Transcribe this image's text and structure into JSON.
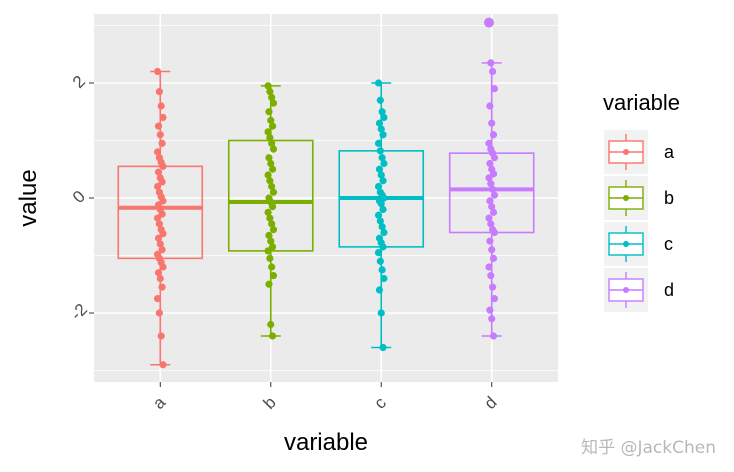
{
  "chart_data": {
    "type": "box",
    "title": "",
    "xlabel": "variable",
    "ylabel": "value",
    "categories": [
      "a",
      "b",
      "c",
      "d"
    ],
    "ylim": [
      -3.2,
      3.2
    ],
    "yticks": [
      -2,
      0,
      2
    ],
    "ytick_labels": [
      "-2",
      "0",
      "2"
    ],
    "grid": true,
    "legend": {
      "title": "variable",
      "position": "right",
      "entries": [
        "a",
        "b",
        "c",
        "d"
      ]
    },
    "colors": {
      "a": "#F8766D",
      "b": "#7CAE00",
      "c": "#00BFC4",
      "d": "#C77CFF"
    },
    "panel_background": "#EBEBEB",
    "series": [
      {
        "name": "a",
        "min": -2.9,
        "q1": -1.05,
        "median": -0.17,
        "q3": 0.55,
        "max": 2.2,
        "points": [
          2.2,
          1.85,
          1.6,
          1.4,
          1.25,
          1.1,
          0.95,
          0.8,
          0.7,
          0.62,
          0.55,
          0.45,
          0.35,
          0.28,
          0.2,
          0.1,
          0.02,
          -0.05,
          -0.12,
          -0.2,
          -0.28,
          -0.35,
          -0.45,
          -0.55,
          -0.62,
          -0.7,
          -0.8,
          -0.9,
          -0.98,
          -1.05,
          -1.12,
          -1.2,
          -1.3,
          -1.4,
          -1.55,
          -1.75,
          -2.0,
          -2.4,
          -2.9
        ]
      },
      {
        "name": "b",
        "min": -2.4,
        "q1": -0.92,
        "median": -0.07,
        "q3": 1.0,
        "max": 1.95,
        "points": [
          1.95,
          1.85,
          1.75,
          1.65,
          1.5,
          1.35,
          1.25,
          1.15,
          1.05,
          0.95,
          0.85,
          0.7,
          0.6,
          0.5,
          0.4,
          0.3,
          0.2,
          0.1,
          0.0,
          -0.07,
          -0.15,
          -0.25,
          -0.35,
          -0.45,
          -0.55,
          -0.65,
          -0.75,
          -0.85,
          -0.92,
          -1.05,
          -1.2,
          -1.35,
          -1.5,
          -2.2,
          -2.4
        ]
      },
      {
        "name": "c",
        "min": -2.6,
        "q1": -0.85,
        "median": 0.0,
        "q3": 0.82,
        "max": 2.0,
        "points": [
          2.0,
          1.7,
          1.5,
          1.4,
          1.3,
          1.2,
          1.1,
          0.95,
          0.82,
          0.7,
          0.6,
          0.5,
          0.4,
          0.3,
          0.2,
          0.1,
          0.05,
          0.0,
          -0.05,
          -0.1,
          -0.2,
          -0.3,
          -0.4,
          -0.5,
          -0.6,
          -0.7,
          -0.78,
          -0.85,
          -0.95,
          -1.1,
          -1.25,
          -1.4,
          -1.6,
          -2.0,
          -2.6
        ]
      },
      {
        "name": "d",
        "min": -2.4,
        "q1": -0.6,
        "median": 0.15,
        "q3": 0.78,
        "max": 2.35,
        "points": [
          3.05,
          2.35,
          2.2,
          1.9,
          1.6,
          1.3,
          1.1,
          0.95,
          0.85,
          0.78,
          0.7,
          0.6,
          0.5,
          0.42,
          0.35,
          0.25,
          0.15,
          0.05,
          -0.05,
          -0.15,
          -0.25,
          -0.35,
          -0.45,
          -0.55,
          -0.6,
          -0.75,
          -0.9,
          -1.05,
          -1.2,
          -1.35,
          -1.55,
          -1.75,
          -1.95,
          -2.1,
          -2.4
        ]
      }
    ]
  },
  "watermark": "知乎 @JackChen"
}
